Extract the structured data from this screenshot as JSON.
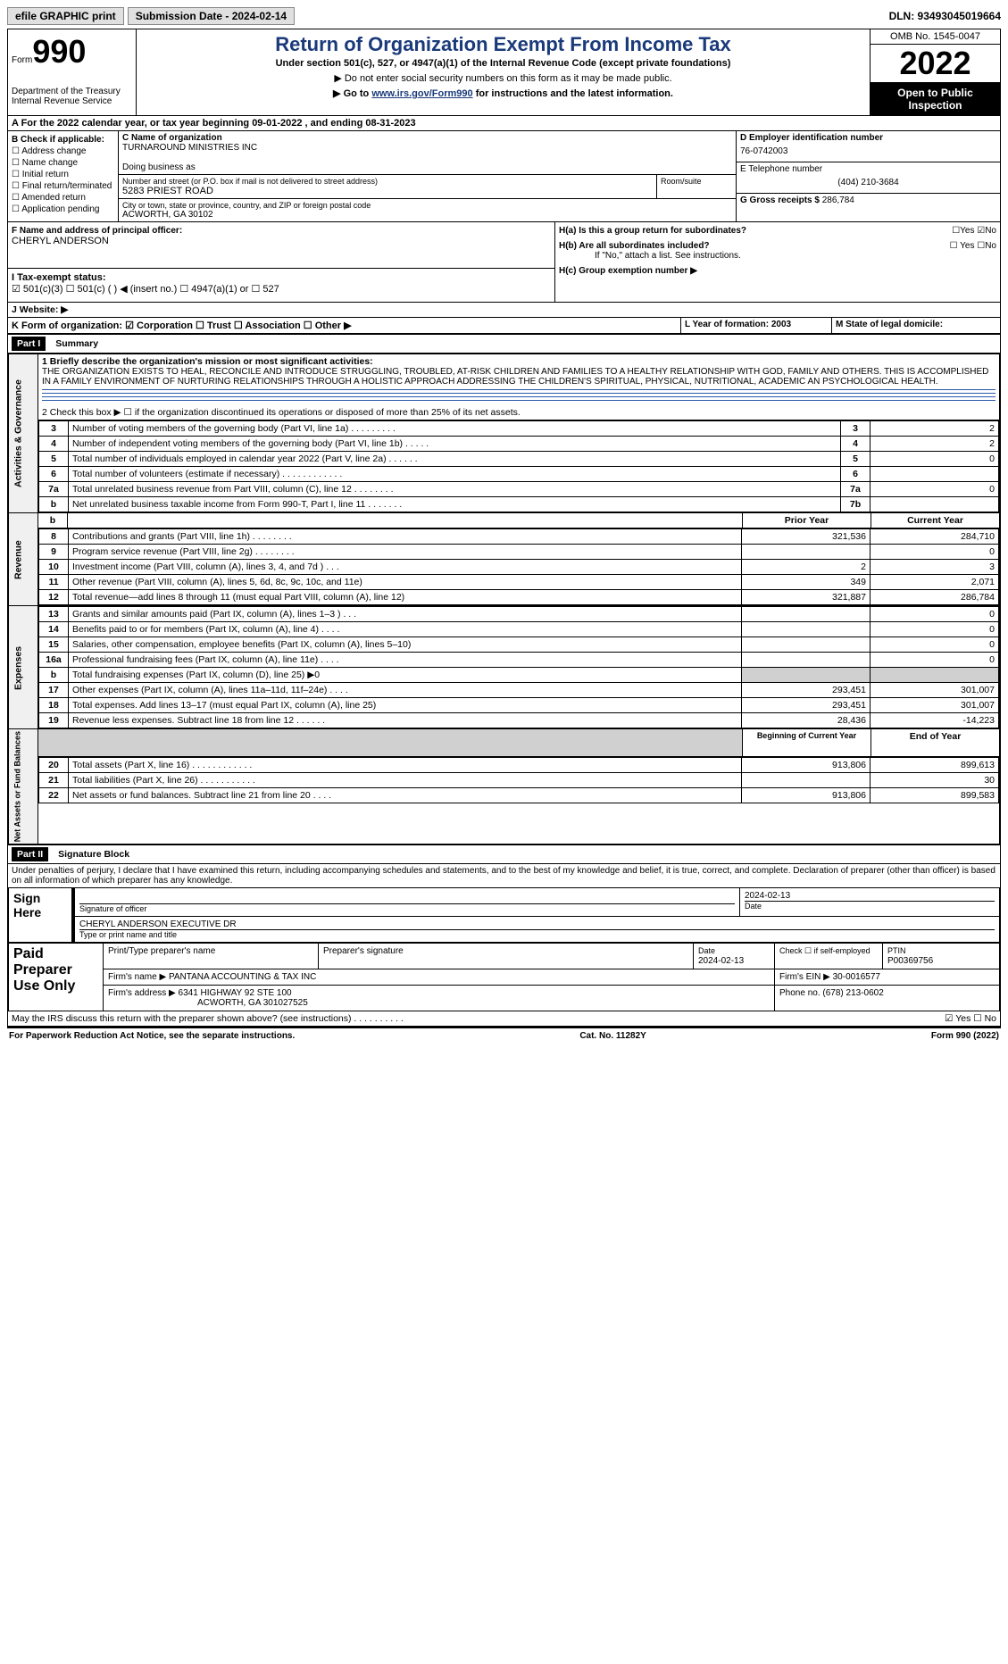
{
  "topbar": {
    "efile": "efile GRAPHIC print",
    "sub_label": "Submission Date - 2024-02-14",
    "dln": "DLN: 93493045019664"
  },
  "header": {
    "form_word": "Form",
    "form_number": "990",
    "dept": "Department of the Treasury",
    "irs": "Internal Revenue Service",
    "title": "Return of Organization Exempt From Income Tax",
    "subtitle": "Under section 501(c), 527, or 4947(a)(1) of the Internal Revenue Code (except private foundations)",
    "note1": "▶ Do not enter social security numbers on this form as it may be made public.",
    "note2_pre": "▶ Go to ",
    "note2_link": "www.irs.gov/Form990",
    "note2_post": " for instructions and the latest information.",
    "omb": "OMB No. 1545-0047",
    "year": "2022",
    "open": "Open to Public Inspection"
  },
  "row_a": "A For the 2022 calendar year, or tax year beginning 09-01-2022     , and ending 08-31-2023",
  "box_b": {
    "title": "B Check if applicable:",
    "items": [
      "☐ Address change",
      "☐ Name change",
      "☐ Initial return",
      "☐ Final return/terminated",
      "☐ Amended return",
      "☐ Application pending"
    ]
  },
  "box_c": {
    "name_label": "C Name of organization",
    "name": "TURNAROUND MINISTRIES INC",
    "dba_label": "Doing business as",
    "addr_label": "Number and street (or P.O. box if mail is not delivered to street address)",
    "addr": "5283 PRIEST ROAD",
    "room_label": "Room/suite",
    "city_label": "City or town, state or province, country, and ZIP or foreign postal code",
    "city": "ACWORTH, GA  30102"
  },
  "box_d": {
    "label": "D Employer identification number",
    "val": "76-0742003"
  },
  "box_e": {
    "label": "E Telephone number",
    "val": "(404) 210-3684"
  },
  "box_g": {
    "label": "G Gross receipts $",
    "val": "286,784"
  },
  "box_f": {
    "label": "F  Name and address of principal officer:",
    "val": "CHERYL ANDERSON"
  },
  "box_h": {
    "a": "H(a)  Is this a group return for subordinates?",
    "a_yes": "☐Yes ☑No",
    "b": "H(b)  Are all subordinates included?",
    "b_yn": "☐ Yes ☐No",
    "b_note": "If \"No,\" attach a list. See instructions.",
    "c": "H(c)  Group exemption number ▶"
  },
  "status": {
    "i": "I    Tax-exempt status:",
    "opts": "☑ 501(c)(3)    ☐  501(c) (  ) ◀ (insert no.)     ☐ 4947(a)(1) or   ☐ 527"
  },
  "j": "J    Website: ▶",
  "k": "K Form of organization:  ☑ Corporation  ☐ Trust  ☐ Association  ☐ Other ▶",
  "l": "L Year of formation: 2003",
  "m": "M State of legal domicile:",
  "parts": {
    "p1": "Part I",
    "p1t": "Summary",
    "p2": "Part II",
    "p2t": "Signature Block"
  },
  "summary": {
    "side1": "Activities & Governance",
    "side2": "Revenue",
    "side3": "Expenses",
    "side4": "Net Assets or Fund Balances",
    "q1": "1  Briefly describe the organization's mission or most significant activities:",
    "mission": "THE ORGANIZATION EXISTS TO HEAL, RECONCILE AND INTRODUCE STRUGGLING, TROUBLED, AT-RISK CHILDREN AND FAMILIES TO A HEALTHY RELATIONSHIP WITH GOD, FAMILY AND OTHERS. THIS IS ACCOMPLISHED IN A FAMILY ENVIRONMENT OF NURTURING RELATIONSHIPS THROUGH A HOLISTIC APPROACH ADDRESSING THE CHILDREN'S SPIRITUAL, PHYSICAL, NUTRITIONAL, ACADEMIC AN PSYCHOLOGICAL HEALTH.",
    "q2": "2    Check this box ▶ ☐  if the organization discontinued its operations or disposed of more than 25% of its net assets.",
    "rows_gov": [
      {
        "n": "3",
        "t": "Number of voting members of the governing body (Part VI, line 1a)  .    .    .    .    .    .    .    .    .",
        "box": "3",
        "v": "2"
      },
      {
        "n": "4",
        "t": "Number of independent voting members of the governing body (Part VI, line 1b)   .    .    .    .    .",
        "box": "4",
        "v": "2"
      },
      {
        "n": "5",
        "t": "Total number of individuals employed in calendar year 2022 (Part V, line 2a)    .    .    .    .    .    .",
        "box": "5",
        "v": "0"
      },
      {
        "n": "6",
        "t": "Total number of volunteers (estimate if necessary)   .    .    .    .    .    .    .    .    .    .    .    .",
        "box": "6",
        "v": ""
      },
      {
        "n": "7a",
        "t": "Total unrelated business revenue from Part VIII, column (C), line 12   .    .    .    .    .    .    .    .",
        "box": "7a",
        "v": "0"
      },
      {
        "n": "b",
        "t": "Net unrelated business taxable income from Form 990-T, Part I, line 11   .    .    .    .    .    .    .",
        "box": "7b",
        "v": ""
      }
    ],
    "col_prior": "Prior Year",
    "col_current": "Current Year",
    "rows_rev": [
      {
        "n": "8",
        "t": "Contributions and grants (Part VIII, line 1h)   .    .    .    .    .    .    .    .",
        "p": "321,536",
        "c": "284,710"
      },
      {
        "n": "9",
        "t": "Program service revenue (Part VIII, line 2g)   .    .    .    .    .    .    .    .",
        "p": "",
        "c": "0"
      },
      {
        "n": "10",
        "t": "Investment income (Part VIII, column (A), lines 3, 4, and 7d )   .    .    .",
        "p": "2",
        "c": "3"
      },
      {
        "n": "11",
        "t": "Other revenue (Part VIII, column (A), lines 5, 6d, 8c, 9c, 10c, and 11e)",
        "p": "349",
        "c": "2,071"
      },
      {
        "n": "12",
        "t": "Total revenue—add lines 8 through 11 (must equal Part VIII, column (A), line 12)",
        "p": "321,887",
        "c": "286,784"
      }
    ],
    "rows_exp": [
      {
        "n": "13",
        "t": "Grants and similar amounts paid (Part IX, column (A), lines 1–3 )  .    .    .",
        "p": "",
        "c": "0"
      },
      {
        "n": "14",
        "t": "Benefits paid to or for members (Part IX, column (A), line 4)  .    .    .    .",
        "p": "",
        "c": "0"
      },
      {
        "n": "15",
        "t": "Salaries, other compensation, employee benefits (Part IX, column (A), lines 5–10)",
        "p": "",
        "c": "0"
      },
      {
        "n": "16a",
        "t": "Professional fundraising fees (Part IX, column (A), line 11e)   .    .    .    .",
        "p": "",
        "c": "0"
      },
      {
        "n": "b",
        "t": "Total fundraising expenses (Part IX, column (D), line 25) ▶0",
        "p": "shade",
        "c": "shade"
      },
      {
        "n": "17",
        "t": "Other expenses (Part IX, column (A), lines 11a–11d, 11f–24e)   .    .    .    .",
        "p": "293,451",
        "c": "301,007"
      },
      {
        "n": "18",
        "t": "Total expenses. Add lines 13–17 (must equal Part IX, column (A), line 25)",
        "p": "293,451",
        "c": "301,007"
      },
      {
        "n": "19",
        "t": "Revenue less expenses. Subtract line 18 from line 12  .    .    .    .    .    .",
        "p": "28,436",
        "c": "-14,223"
      }
    ],
    "col_begin": "Beginning of Current Year",
    "col_end": "End of Year",
    "rows_net": [
      {
        "n": "20",
        "t": "Total assets (Part X, line 16)  .    .    .    .    .    .    .    .    .    .    .    .",
        "p": "913,806",
        "c": "899,613"
      },
      {
        "n": "21",
        "t": "Total liabilities (Part X, line 26)  .    .    .    .    .    .    .    .    .    .    .",
        "p": "",
        "c": "30"
      },
      {
        "n": "22",
        "t": "Net assets or fund balances. Subtract line 21 from line 20   .    .    .    .",
        "p": "913,806",
        "c": "899,583"
      }
    ]
  },
  "sig": {
    "penalty": "Under penalties of perjury, I declare that I have examined this return, including accompanying schedules and statements, and to the best of my knowledge and belief, it is true, correct, and complete. Declaration of preparer (other than officer) is based on all information of which preparer has any knowledge.",
    "sign_here": "Sign Here",
    "sig_officer": "Signature of officer",
    "date": "2024-02-13",
    "date_label": "Date",
    "name_title": "CHERYL ANDERSON  EXECUTIVE DR",
    "name_title_label": "Type or print name and title",
    "paid": "Paid Preparer Use Only",
    "prep_name": "Print/Type preparer's name",
    "prep_sig": "Preparer's signature",
    "prep_date_label": "Date",
    "prep_date": "2024-02-13",
    "check_self": "Check ☐ if self-employed",
    "ptin_label": "PTIN",
    "ptin": "P00369756",
    "firm_name_label": "Firm's name    ▶",
    "firm_name": "PANTANA ACCOUNTING & TAX INC",
    "firm_ein_label": "Firm's EIN ▶",
    "firm_ein": "30-0016577",
    "firm_addr_label": "Firm's address ▶",
    "firm_addr": "6341 HIGHWAY 92 STE 100",
    "firm_city": "ACWORTH, GA  301027525",
    "phone_label": "Phone no.",
    "phone": "(678) 213-0602",
    "discuss": "May the IRS discuss this return with the preparer shown above? (see instructions)   .    .    .    .    .    .    .    .    .    .",
    "discuss_yn": "☑ Yes   ☐ No"
  },
  "footer": {
    "left": "For Paperwork Reduction Act Notice, see the separate instructions.",
    "mid": "Cat. No. 11282Y",
    "right": "Form 990 (2022)"
  }
}
